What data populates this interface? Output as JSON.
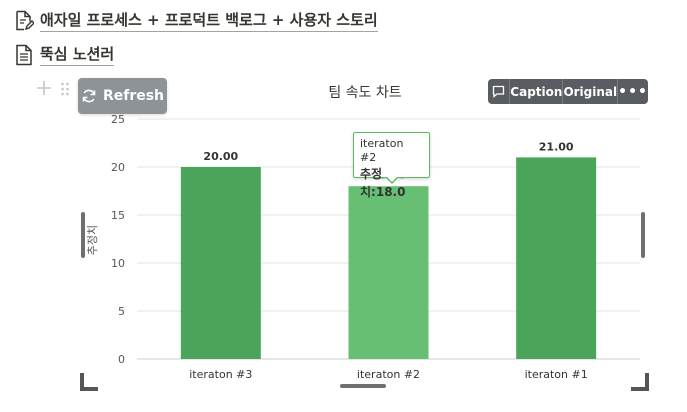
{
  "links": [
    {
      "text": "애자일 프로세스 + 프로덕트 백로그 + 사용자 스토리",
      "icon": "document-edit-icon"
    },
    {
      "text": "뚝심 노션러",
      "icon": "document-icon"
    }
  ],
  "toolbar": {
    "refresh_label": "Refresh",
    "caption_label": "Caption",
    "original_label": "Original",
    "more_label": "•••"
  },
  "tooltip": {
    "name": "iteraton #2",
    "value_text": "추정치:18.0"
  },
  "colors": {
    "bar": "#4aa55a",
    "bar_highlight": "#66bf73",
    "grid": "#e3e3e3",
    "axis_text": "#555555"
  },
  "chart_data": {
    "type": "bar",
    "title": "팀 속도 차트",
    "ylabel": "추정치",
    "xlabel": "",
    "categories": [
      "iteraton #3",
      "iteraton #2",
      "iteraton #1"
    ],
    "values": [
      20.0,
      18.0,
      21.0
    ],
    "value_labels": [
      "20.00",
      "18.00",
      "21.00"
    ],
    "highlighted_index": 1,
    "ylim": [
      0,
      25
    ],
    "yticks": [
      0,
      5,
      10,
      15,
      20,
      25
    ],
    "grid": true,
    "legend": "none"
  }
}
